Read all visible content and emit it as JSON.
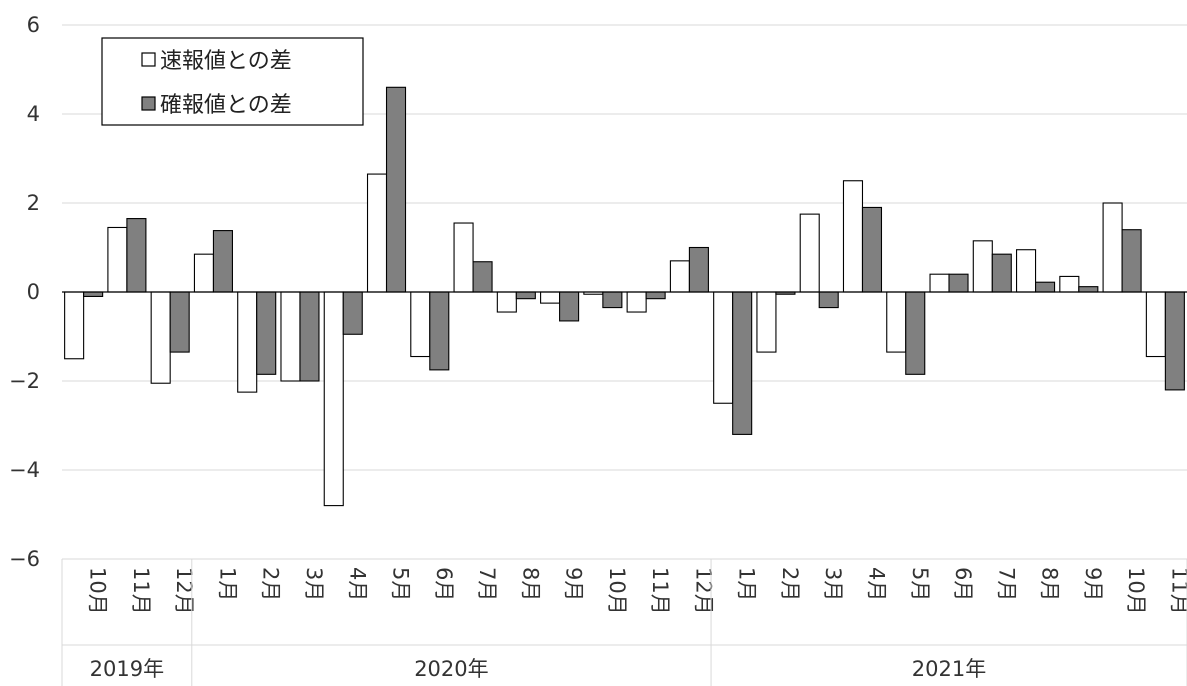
{
  "chart_data": {
    "type": "bar",
    "ylim": [
      -6,
      6
    ],
    "yticks": [
      -6,
      -4,
      -2,
      0,
      2,
      4,
      6
    ],
    "ytick_labels": [
      "−6",
      "−4",
      "−2",
      "0",
      "2",
      "4",
      "6"
    ],
    "grid": true,
    "legend_position": "top-left",
    "categories": [
      "10月",
      "11月",
      "12月",
      "1月",
      "2月",
      "3月",
      "4月",
      "5月",
      "6月",
      "7月",
      "8月",
      "9月",
      "10月",
      "11月",
      "12月",
      "1月",
      "2月",
      "3月",
      "4月",
      "5月",
      "6月",
      "7月",
      "8月",
      "9月",
      "10月",
      "11月"
    ],
    "groups": [
      {
        "label": "2019年",
        "count": 3
      },
      {
        "label": "2020年",
        "count": 12
      },
      {
        "label": "2021年",
        "count": 11
      }
    ],
    "series": [
      {
        "name": "速報値との差",
        "color": "#ffffff",
        "values": [
          -1.5,
          1.45,
          -2.05,
          0.85,
          -2.25,
          -2.0,
          -4.8,
          2.65,
          -1.45,
          1.55,
          -0.45,
          -0.25,
          -0.05,
          -0.45,
          0.7,
          -2.5,
          -1.35,
          1.75,
          2.5,
          -1.35,
          0.4,
          1.15,
          0.95,
          0.35,
          2.0,
          -1.45
        ]
      },
      {
        "name": "確報値との差",
        "color": "#808080",
        "values": [
          -0.1,
          1.65,
          -1.35,
          1.38,
          -1.85,
          -2.0,
          -0.95,
          4.6,
          -1.75,
          0.68,
          -0.15,
          -0.65,
          -0.35,
          -0.15,
          1.0,
          -3.2,
          -0.05,
          -0.35,
          1.9,
          -1.85,
          0.4,
          0.85,
          0.22,
          0.12,
          1.4,
          -2.2
        ]
      }
    ]
  }
}
